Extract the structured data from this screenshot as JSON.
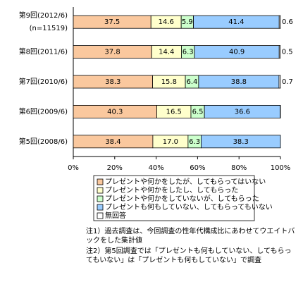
{
  "chart_data": {
    "type": "stacked-bar-horizontal",
    "categories": [
      "第9回(2012/6)",
      "第8回(2011/6)",
      "第7回(2010/6)",
      "第6回(2009/6)",
      "第5回(2008/6)"
    ],
    "category_note": "(n=11519)",
    "series": [
      {
        "name": "プレゼントや何かをしたが、してもらってはいない",
        "color": "#fac89e",
        "values": [
          37.5,
          37.8,
          38.3,
          40.3,
          38.4
        ]
      },
      {
        "name": "プレゼントや何かをしたし、してもらった",
        "color": "#ffffcc",
        "values": [
          14.6,
          14.4,
          15.8,
          16.5,
          17.0
        ],
        "value_labels": [
          "14.6",
          "14.4",
          "15.8",
          "16.5",
          "17.0"
        ]
      },
      {
        "name": "プレゼントや何かをしていないが、してもらった",
        "color": "#ccffcc",
        "values": [
          5.9,
          6.3,
          6.4,
          6.5,
          6.3
        ]
      },
      {
        "name": "プレゼントも何もしていない、してもらってもいない",
        "color": "#99ccff",
        "values": [
          41.4,
          40.9,
          38.8,
          36.6,
          38.3
        ]
      },
      {
        "name": "無回答",
        "color": "#ffffff",
        "values": [
          0.6,
          0.5,
          0.7,
          0.1,
          0
        ],
        "value_labels": [
          "0.6",
          "0.5",
          "0.7",
          null,
          null
        ]
      }
    ],
    "xlim": [
      0,
      100
    ],
    "xticks": [
      {
        "value": 0,
        "label": "0%"
      },
      {
        "value": 20,
        "label": "20%"
      },
      {
        "value": 40,
        "label": "40%"
      },
      {
        "value": 60,
        "label": "60%"
      },
      {
        "value": 80,
        "label": "80%"
      },
      {
        "value": 100,
        "label": "100%"
      }
    ],
    "notes": [
      "注1）過去調査は、今回調査の性年代構成比にあわせてウエイトバックをした集計値",
      "注2）第5回調査では「プレゼントも何もしていない、してもらってもいない」は「プレゼントも何もしていない」で調査"
    ]
  }
}
